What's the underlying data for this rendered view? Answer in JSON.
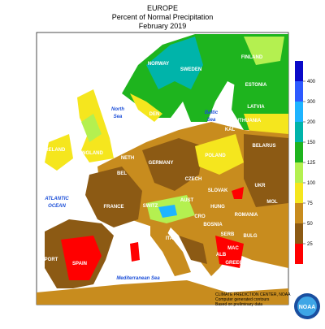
{
  "header": {
    "region": "EUROPE",
    "title": "Percent of Normal Precipitation",
    "period": "February 2019"
  },
  "countries": {
    "norway": "NORWAY",
    "sweden": "SWEDEN",
    "finland": "FINLAND",
    "estonia": "ESTONIA",
    "latvia": "LATVIA",
    "lithuania": "LITHUANIA",
    "belarus": "BELARUS",
    "den": "DEN",
    "kal": "KAL",
    "ireland": "IRELAND",
    "england": "ENGLAND",
    "neth": "NETH",
    "bel": "BEL",
    "germany": "GERMANY",
    "poland": "POLAND",
    "czech": "CZECH",
    "slovak": "SLOVAK",
    "ukr": "UKR",
    "mol": "MOL",
    "france": "FRANCE",
    "switz": "SWITZ",
    "aust": "AUST",
    "hung": "HUNG",
    "cro": "CRO",
    "romania": "ROMANIA",
    "bosnia": "BOSNIA",
    "serb": "SERB",
    "bulg": "BULG",
    "italy": "ITALY",
    "mac": "MAC",
    "alb": "ALB",
    "greece": "GREECE",
    "spain": "SPAIN",
    "port": "PORT"
  },
  "seas": {
    "north_sea": [
      "North",
      "Sea"
    ],
    "baltic_sea": [
      "Baltic",
      "Sea"
    ],
    "atlantic": [
      "ATLANTIC",
      "OCEAN"
    ],
    "mediterranean": "Mediterranean Sea"
  },
  "legend": {
    "ticks": [
      400,
      300,
      200,
      150,
      125,
      100,
      75,
      50,
      25
    ],
    "colors": [
      "#0a0ac8",
      "#2d5aff",
      "#1eb4ff",
      "#00b4aa",
      "#1eb41e",
      "#b4f050",
      "#f5e61e",
      "#c88c1e",
      "#8c5a14",
      "#ff0000"
    ]
  },
  "credits": [
    "CLIMATE PREDICTION CENTER, NOAA",
    "Computer generated contours",
    "Based on preliminary data"
  ],
  "logo": "NOAA"
}
